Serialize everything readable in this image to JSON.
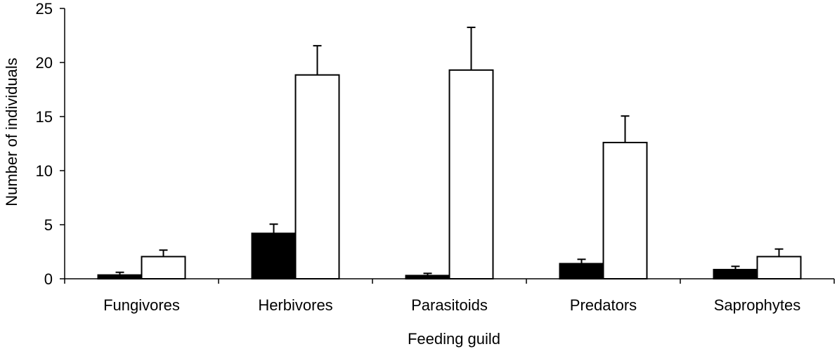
{
  "chart_data": {
    "type": "bar",
    "title": "",
    "xlabel": "Feeding guild",
    "ylabel": "Number  of individuals",
    "ylim": [
      0,
      25
    ],
    "yticks": [
      0,
      5,
      10,
      15,
      20,
      25
    ],
    "categories": [
      "Fungivores",
      "Herbivores",
      "Parasitoids",
      "Predators",
      "Saprophytes"
    ],
    "grid": false,
    "legend": "none",
    "series": [
      {
        "color": "#000000",
        "values": [
          0.35,
          4.2,
          0.3,
          1.4,
          0.85
        ],
        "errors": [
          0.25,
          0.85,
          0.2,
          0.4,
          0.3
        ]
      },
      {
        "color": "#ffffff",
        "values": [
          2.05,
          18.85,
          19.3,
          12.6,
          2.05
        ],
        "errors": [
          0.6,
          2.7,
          3.95,
          2.45,
          0.7
        ]
      }
    ]
  }
}
